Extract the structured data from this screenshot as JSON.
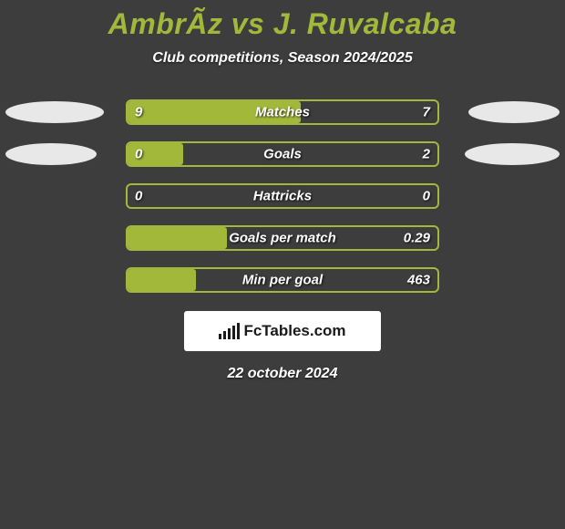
{
  "header": {
    "title": "AmbrÃ­z vs J. Ruvalcaba",
    "subtitle": "Club competitions, Season 2024/2025"
  },
  "style": {
    "background_color": "#3d3d3d",
    "accent_color": "#a2b83a",
    "text_color": "#ffffff",
    "ellipse_color": "#e8e8e8",
    "bar_border_color": "#a2b83a",
    "title_fontsize": 32,
    "label_fontsize": 15,
    "bar_track_width": 344,
    "bar_track_height": 28
  },
  "stats": [
    {
      "label": "Matches",
      "left_value": "9",
      "right_value": "7",
      "fill_percent": 56,
      "left_ellipse_width": 108,
      "right_ellipse_width": 100
    },
    {
      "label": "Goals",
      "left_value": "0",
      "right_value": "2",
      "fill_percent": 18,
      "left_ellipse_width": 100,
      "right_ellipse_width": 104
    },
    {
      "label": "Hattricks",
      "left_value": "0",
      "right_value": "0",
      "fill_percent": 0,
      "left_ellipse_width": 0,
      "right_ellipse_width": 0
    },
    {
      "label": "Goals per match",
      "left_value": "",
      "right_value": "0.29",
      "fill_percent": 32,
      "left_ellipse_width": 0,
      "right_ellipse_width": 0
    },
    {
      "label": "Min per goal",
      "left_value": "",
      "right_value": "463",
      "fill_percent": 22,
      "left_ellipse_width": 0,
      "right_ellipse_width": 0
    }
  ],
  "brand": {
    "text_a": "Fc",
    "text_b": "Tables",
    "text_c": ".com",
    "bars": [
      6,
      9,
      12,
      15,
      18
    ]
  },
  "footer": {
    "date": "22 october 2024"
  }
}
